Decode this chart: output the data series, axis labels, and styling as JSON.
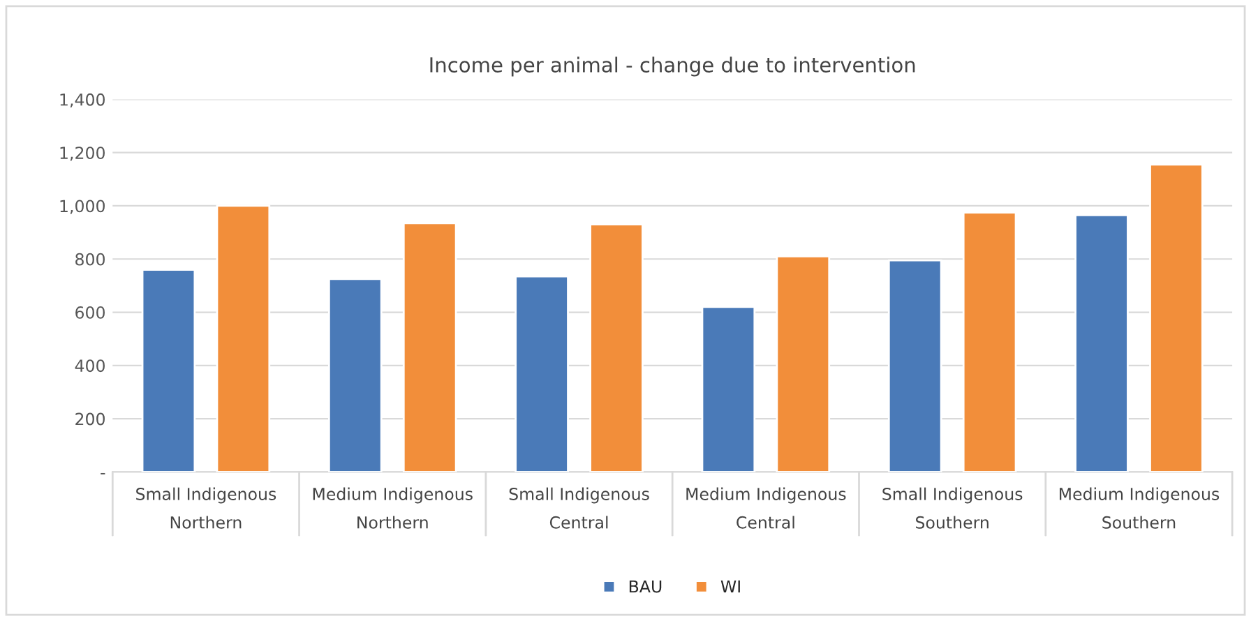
{
  "chart_data": {
    "type": "bar",
    "title": "Income per animal - change due to intervention",
    "categories": [
      "Small Indigenous\nNorthern",
      "Medium Indigenous\nNorthern",
      "Small Indigenous\nCentral",
      "Medium Indigenous\nCentral",
      "Small Indigenous\nSouthern",
      "Medium Indigenous\nSouthern"
    ],
    "series": [
      {
        "name": "BAU",
        "color": "#4a7ab8",
        "values": [
          760,
          725,
          735,
          620,
          795,
          965
        ]
      },
      {
        "name": "WI",
        "color": "#f28e3a",
        "values": [
          1000,
          935,
          930,
          810,
          975,
          1155
        ]
      }
    ],
    "ylim": [
      0,
      1400
    ],
    "yticks": [
      {
        "value": 0,
        "label": "-"
      },
      200,
      400,
      600,
      800,
      {
        "value": 1000,
        "label": "1,000"
      },
      {
        "value": 1200,
        "label": "1,200"
      },
      {
        "value": 1400,
        "label": "1,400"
      }
    ],
    "grid": "y",
    "legend": "bottom"
  }
}
